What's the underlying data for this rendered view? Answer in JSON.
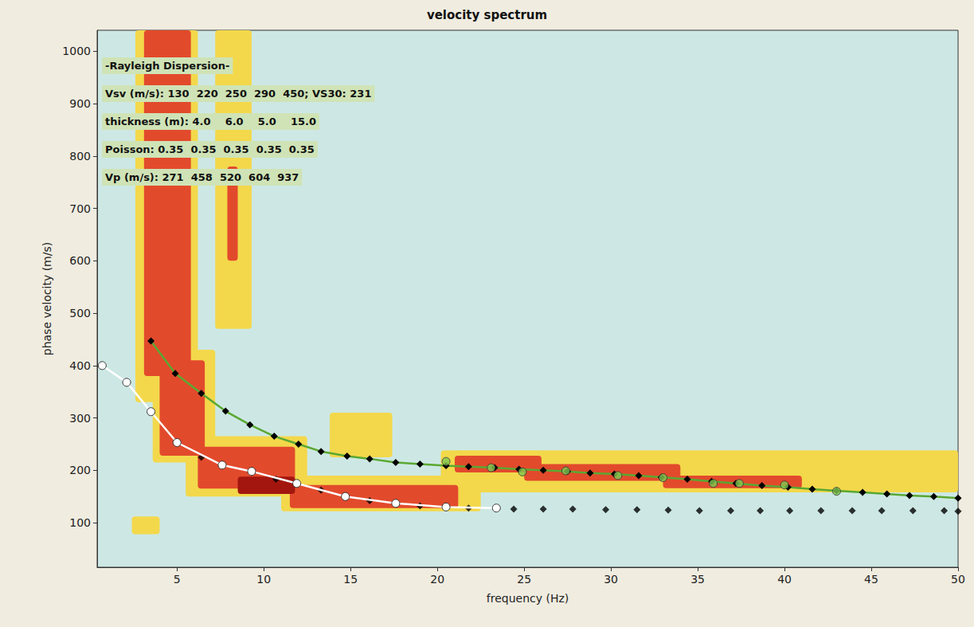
{
  "chart_data": {
    "type": "line",
    "title": "velocity spectrum",
    "x_label": "frequency (Hz)",
    "y_label": "phase velocity (m/s)",
    "xlim": [
      0.4,
      50
    ],
    "ylim": [
      15,
      1040
    ],
    "xticks": [
      5,
      10,
      15,
      20,
      25,
      30,
      35,
      40,
      45,
      50
    ],
    "yticks": [
      100,
      200,
      300,
      400,
      500,
      600,
      700,
      800,
      900,
      1000
    ],
    "grid": false,
    "annotations": [
      "-Rayleigh Dispersion-",
      "Vsv (m/s): 130  220  250  290  450; VS30: 231",
      "thickness (m): 4.0    6.0    5.0    15.0",
      "Poisson: 0.35  0.35  0.35  0.35  0.35",
      "Vp (m/s): 271  458  520  604  937"
    ],
    "spectrum": [
      [
        2.6,
        6.2,
        330,
        1040,
        1
      ],
      [
        3.6,
        7.2,
        215,
        430,
        1
      ],
      [
        5.5,
        12.5,
        150,
        265,
        1
      ],
      [
        11,
        22.5,
        122,
        190,
        1
      ],
      [
        7.2,
        9.3,
        470,
        1040,
        1
      ],
      [
        13.8,
        17.4,
        225,
        310,
        1
      ],
      [
        20.2,
        50,
        158,
        238,
        1
      ],
      [
        2.4,
        4.0,
        78,
        112,
        1
      ],
      [
        3.1,
        5.8,
        380,
        1040,
        2
      ],
      [
        4.0,
        6.6,
        228,
        410,
        2
      ],
      [
        6.2,
        11.8,
        165,
        245,
        2
      ],
      [
        11.5,
        21.2,
        128,
        172,
        2
      ],
      [
        7.9,
        8.5,
        600,
        780,
        2
      ],
      [
        21,
        26,
        196,
        228,
        2
      ],
      [
        25,
        34,
        180,
        212,
        2
      ],
      [
        33,
        41,
        166,
        190,
        2
      ],
      [
        8.5,
        11.8,
        155,
        188,
        3
      ]
    ],
    "series": [
      {
        "type": "line",
        "color": "#5aa832",
        "marker": "diamond",
        "x": [
          3.5,
          4.9,
          6.4,
          7.8,
          9.2,
          10.6,
          12.0,
          13.3,
          14.8,
          16.1,
          17.6,
          19.0,
          20.5,
          21.8,
          23.3,
          24.7,
          26.1,
          27.5,
          28.8,
          30.2,
          31.6,
          32.9,
          34.4,
          35.8,
          37.2,
          38.7,
          40.2,
          41.6,
          43.0,
          44.5,
          45.9,
          47.2,
          48.6,
          50
        ],
        "values": [
          447,
          385,
          347,
          313,
          287,
          265,
          250,
          236,
          227,
          222,
          215,
          212,
          209,
          207,
          205,
          202,
          200,
          198,
          195,
          193,
          190,
          187,
          183,
          179,
          175,
          171,
          168,
          164,
          161,
          158,
          155,
          152,
          150,
          147
        ]
      },
      {
        "type": "scatter",
        "color": "#000000",
        "marker": "diamond",
        "x": [
          6.4,
          10.7,
          13.3,
          16.1,
          19.0,
          21.8,
          24.4,
          26.1,
          27.8,
          29.7,
          31.5,
          33.3,
          35.1,
          36.9,
          38.6,
          40.3,
          42.1,
          43.9,
          45.6,
          47.4,
          49.2,
          50
        ],
        "values": [
          225,
          183,
          162,
          142,
          132,
          128,
          126,
          126,
          126,
          125,
          125,
          124,
          123,
          123,
          123,
          123,
          123,
          123,
          123,
          123,
          123,
          122
        ]
      },
      {
        "type": "line",
        "color": "#ffffff",
        "marker": "circle",
        "x": [
          0.69,
          2.1,
          3.5,
          5.0,
          7.6,
          9.3,
          11.9,
          14.7,
          17.6,
          20.5,
          23.4
        ],
        "values": [
          400,
          368,
          312,
          253,
          210,
          198,
          175,
          150,
          137,
          130,
          128
        ]
      },
      {
        "type": "scatter",
        "color": "#7ec850",
        "marker": "circle",
        "x": [
          20.5,
          23.1,
          24.9,
          27.4,
          30.4,
          33.0,
          35.9,
          37.4,
          40.0,
          43.0
        ],
        "values": [
          217,
          205,
          197,
          199,
          190,
          186,
          175,
          175,
          172,
          160
        ]
      }
    ]
  }
}
